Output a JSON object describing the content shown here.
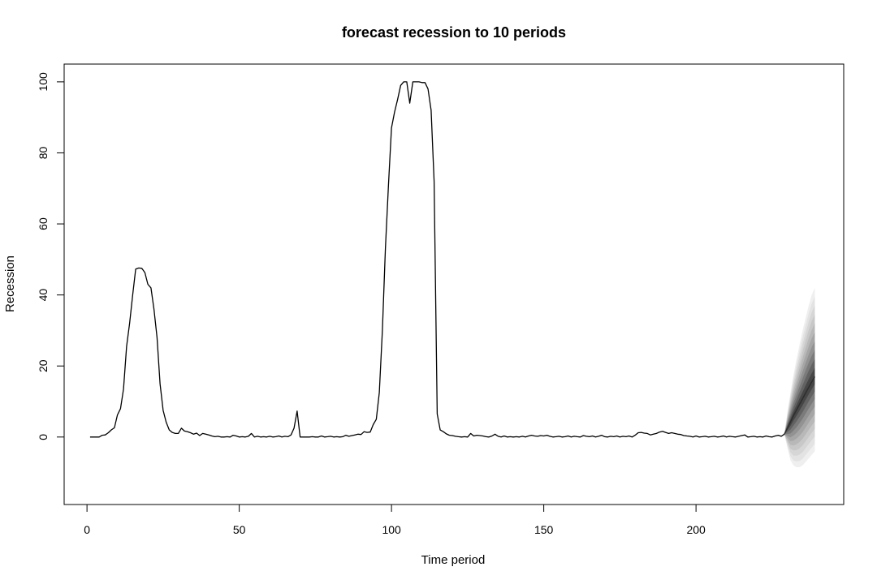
{
  "chart_data": {
    "type": "line",
    "title": "forecast recession to 10 periods",
    "xlabel": "Time period",
    "ylabel": "Recession",
    "xlim": [
      -7.5,
      248.5
    ],
    "ylim": [
      -19,
      105
    ],
    "xticks": [
      0,
      50,
      100,
      150,
      200
    ],
    "yticks": [
      0,
      20,
      40,
      60,
      80,
      100
    ],
    "grid": false,
    "legend": "none",
    "colors": {
      "line": "#000000",
      "frame": "#000000",
      "fan": [
        "#efefef",
        "#e3e3e3",
        "#d6d6d6",
        "#c8c8c8",
        "#b8b8b8",
        "#a6a6a6",
        "#929292",
        "#7b7b7b",
        "#626262",
        "#464646"
      ]
    },
    "series": [
      {
        "values": [
          [
            1,
            0
          ],
          [
            2,
            0
          ],
          [
            3,
            0
          ],
          [
            4,
            0
          ],
          [
            5,
            0.5
          ],
          [
            6,
            0.6
          ],
          [
            7,
            1.2
          ],
          [
            8,
            2.0
          ],
          [
            9,
            2.6
          ],
          [
            10,
            6.2
          ],
          [
            11,
            8.0
          ],
          [
            12,
            13.5
          ],
          [
            13,
            25.5
          ],
          [
            14,
            32.0
          ],
          [
            15,
            40.0
          ],
          [
            16,
            47.3
          ],
          [
            17,
            47.6
          ],
          [
            18,
            47.5
          ],
          [
            19,
            46.3
          ],
          [
            20,
            43.0
          ],
          [
            21,
            42.0
          ],
          [
            22,
            36.0
          ],
          [
            23,
            28.0
          ],
          [
            24,
            15.0
          ],
          [
            25,
            7.5
          ],
          [
            26,
            4.2
          ],
          [
            27,
            2.0
          ],
          [
            28,
            1.3
          ],
          [
            29,
            1.0
          ],
          [
            30,
            1.0
          ],
          [
            31,
            2.5
          ],
          [
            32,
            1.7
          ],
          [
            33,
            1.5
          ],
          [
            34,
            1.2
          ],
          [
            35,
            0.8
          ],
          [
            36,
            1.1
          ],
          [
            37,
            0.4
          ],
          [
            38,
            1.0
          ],
          [
            39,
            0.8
          ],
          [
            40,
            0.6
          ],
          [
            41,
            0.3
          ],
          [
            42,
            0.1
          ],
          [
            43,
            0.2
          ],
          [
            44,
            0.0
          ],
          [
            45,
            0.0
          ],
          [
            46,
            0.1
          ],
          [
            47,
            0.0
          ],
          [
            48,
            0.5
          ],
          [
            49,
            0.3
          ],
          [
            50,
            0.0
          ],
          [
            51,
            0.1
          ],
          [
            52,
            0.0
          ],
          [
            53,
            0.2
          ],
          [
            54,
            1.0
          ],
          [
            55,
            0.0
          ],
          [
            56,
            0.2
          ],
          [
            57,
            0.0
          ],
          [
            58,
            0.1
          ],
          [
            59,
            0.0
          ],
          [
            60,
            0.2
          ],
          [
            61,
            0.0
          ],
          [
            62,
            0.1
          ],
          [
            63,
            0.3
          ],
          [
            64,
            0.0
          ],
          [
            65,
            0.2
          ],
          [
            66,
            0.1
          ],
          [
            67,
            0.6
          ],
          [
            68,
            2.5
          ],
          [
            69,
            7.3
          ],
          [
            70,
            0.0
          ],
          [
            71,
            0.0
          ],
          [
            72,
            0.0
          ],
          [
            73,
            0.0
          ],
          [
            74,
            0.1
          ],
          [
            75,
            0.0
          ],
          [
            76,
            0.0
          ],
          [
            77,
            0.3
          ],
          [
            78,
            0.0
          ],
          [
            79,
            0.1
          ],
          [
            80,
            0.2
          ],
          [
            81,
            0.0
          ],
          [
            82,
            0.1
          ],
          [
            83,
            0.0
          ],
          [
            84,
            0.1
          ],
          [
            85,
            0.5
          ],
          [
            86,
            0.2
          ],
          [
            87,
            0.4
          ],
          [
            88,
            0.6
          ],
          [
            89,
            0.8
          ],
          [
            90,
            0.7
          ],
          [
            91,
            1.5
          ],
          [
            92,
            1.3
          ],
          [
            93,
            1.4
          ],
          [
            94,
            3.5
          ],
          [
            95,
            5.0
          ],
          [
            96,
            12.5
          ],
          [
            97,
            30.0
          ],
          [
            98,
            53.0
          ],
          [
            99,
            71.0
          ],
          [
            100,
            87.0
          ],
          [
            101,
            91.5
          ],
          [
            102,
            95.0
          ],
          [
            103,
            99.0
          ],
          [
            104,
            100.0
          ],
          [
            105,
            100.0
          ],
          [
            106,
            94.0
          ],
          [
            107,
            100.0
          ],
          [
            108,
            100.0
          ],
          [
            109,
            100.0
          ],
          [
            110,
            99.8
          ],
          [
            111,
            99.8
          ],
          [
            112,
            98.0
          ],
          [
            113,
            92.0
          ],
          [
            114,
            72.0
          ],
          [
            115,
            6.5
          ],
          [
            116,
            2.0
          ],
          [
            117,
            1.5
          ],
          [
            118,
            0.9
          ],
          [
            119,
            0.5
          ],
          [
            120,
            0.4
          ],
          [
            121,
            0.2
          ],
          [
            122,
            0.1
          ],
          [
            123,
            0.0
          ],
          [
            124,
            0.1
          ],
          [
            125,
            0.0
          ],
          [
            126,
            1.0
          ],
          [
            127,
            0.3
          ],
          [
            128,
            0.5
          ],
          [
            129,
            0.4
          ],
          [
            130,
            0.3
          ],
          [
            131,
            0.1
          ],
          [
            132,
            0.0
          ],
          [
            133,
            0.3
          ],
          [
            134,
            0.8
          ],
          [
            135,
            0.2
          ],
          [
            136,
            0.0
          ],
          [
            137,
            0.3
          ],
          [
            138,
            0.0
          ],
          [
            139,
            0.1
          ],
          [
            140,
            0.0
          ],
          [
            141,
            0.1
          ],
          [
            142,
            0.0
          ],
          [
            143,
            0.2
          ],
          [
            144,
            0.0
          ],
          [
            145,
            0.3
          ],
          [
            146,
            0.5
          ],
          [
            147,
            0.3
          ],
          [
            148,
            0.2
          ],
          [
            149,
            0.4
          ],
          [
            150,
            0.3
          ],
          [
            151,
            0.5
          ],
          [
            152,
            0.2
          ],
          [
            153,
            0.0
          ],
          [
            154,
            0.1
          ],
          [
            155,
            0.2
          ],
          [
            156,
            0.0
          ],
          [
            157,
            0.1
          ],
          [
            158,
            0.3
          ],
          [
            159,
            0.0
          ],
          [
            160,
            0.2
          ],
          [
            161,
            0.1
          ],
          [
            162,
            0.0
          ],
          [
            163,
            0.4
          ],
          [
            164,
            0.2
          ],
          [
            165,
            0.1
          ],
          [
            166,
            0.3
          ],
          [
            167,
            0.0
          ],
          [
            168,
            0.2
          ],
          [
            169,
            0.5
          ],
          [
            170,
            0.1
          ],
          [
            171,
            0.0
          ],
          [
            172,
            0.2
          ],
          [
            173,
            0.1
          ],
          [
            174,
            0.3
          ],
          [
            175,
            0.0
          ],
          [
            176,
            0.2
          ],
          [
            177,
            0.1
          ],
          [
            178,
            0.3
          ],
          [
            179,
            0.0
          ],
          [
            180,
            0.5
          ],
          [
            181,
            1.2
          ],
          [
            182,
            1.3
          ],
          [
            183,
            1.1
          ],
          [
            184,
            1.0
          ],
          [
            185,
            0.6
          ],
          [
            186,
            0.8
          ],
          [
            187,
            1.0
          ],
          [
            188,
            1.4
          ],
          [
            189,
            1.6
          ],
          [
            190,
            1.3
          ],
          [
            191,
            1.0
          ],
          [
            192,
            1.2
          ],
          [
            193,
            1.0
          ],
          [
            194,
            0.8
          ],
          [
            195,
            0.7
          ],
          [
            196,
            0.4
          ],
          [
            197,
            0.3
          ],
          [
            198,
            0.2
          ],
          [
            199,
            0.0
          ],
          [
            200,
            0.3
          ],
          [
            201,
            0.0
          ],
          [
            202,
            0.1
          ],
          [
            203,
            0.2
          ],
          [
            204,
            0.0
          ],
          [
            205,
            0.1
          ],
          [
            206,
            0.2
          ],
          [
            207,
            0.0
          ],
          [
            208,
            0.1
          ],
          [
            209,
            0.3
          ],
          [
            210,
            0.0
          ],
          [
            211,
            0.2
          ],
          [
            212,
            0.1
          ],
          [
            213,
            0.0
          ],
          [
            214,
            0.2
          ],
          [
            215,
            0.4
          ],
          [
            216,
            0.6
          ],
          [
            217,
            0.0
          ],
          [
            218,
            0.1
          ],
          [
            219,
            0.2
          ],
          [
            220,
            0.0
          ],
          [
            221,
            0.1
          ],
          [
            222,
            0.0
          ],
          [
            223,
            0.3
          ],
          [
            224,
            0.1
          ],
          [
            225,
            0.0
          ],
          [
            226,
            0.3
          ],
          [
            227,
            0.5
          ],
          [
            228,
            0.2
          ],
          [
            229,
            0.8
          ]
        ]
      }
    ],
    "forecast": {
      "x": [
        229,
        230,
        231,
        232,
        233,
        234,
        235,
        236,
        237,
        238,
        239
      ],
      "mean": [
        0.8,
        2.5,
        4.2,
        6.0,
        7.6,
        9.2,
        10.8,
        12.4,
        14.0,
        15.5,
        17.0
      ],
      "upper": [
        0.8,
        7.0,
        12.5,
        17.5,
        22.0,
        26.0,
        30.0,
        33.5,
        37.0,
        40.0,
        42.0
      ],
      "lower": [
        0.8,
        -3.0,
        -6.5,
        -8.0,
        -8.5,
        -8.5,
        -8.0,
        -7.0,
        -6.0,
        -5.0,
        -4.0
      ]
    }
  }
}
